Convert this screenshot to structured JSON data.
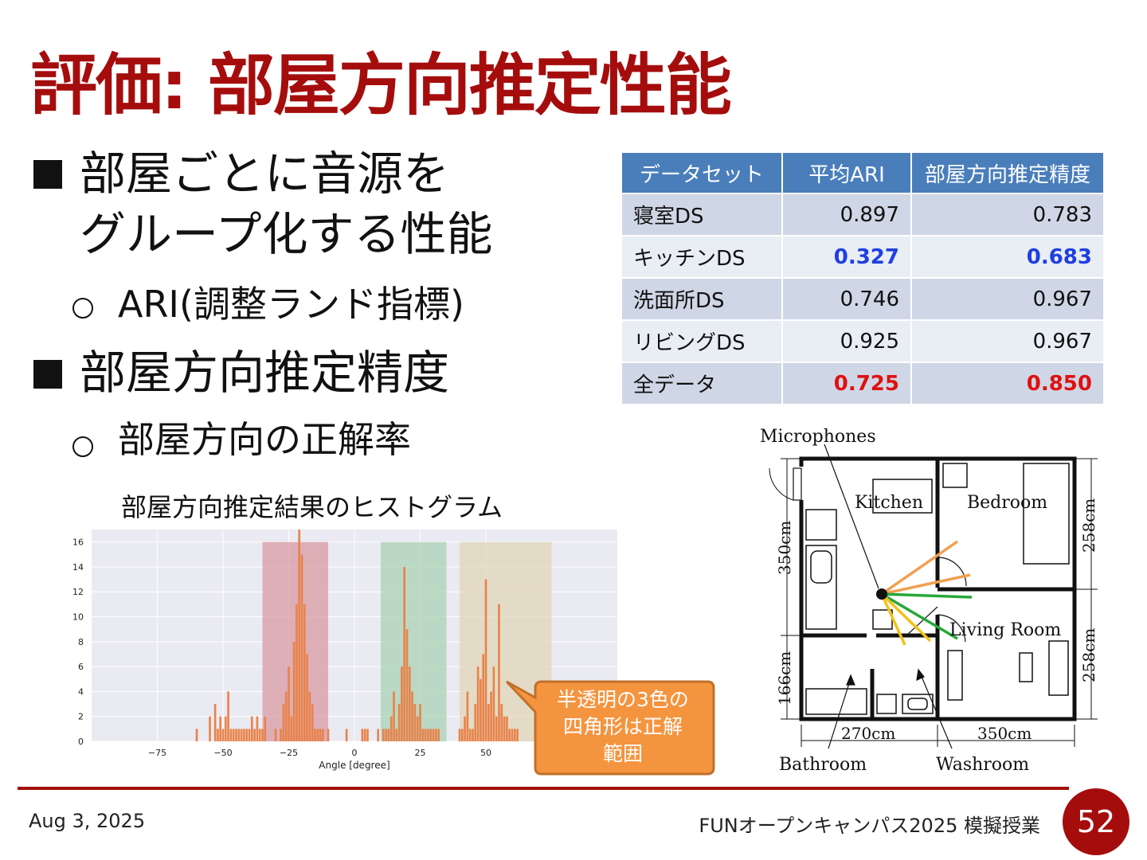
{
  "title": "評価: 部屋方向推定性能",
  "bullets": [
    {
      "line1": "部屋ごとに音源を",
      "line2": "グループ化する性能"
    },
    {
      "sub": "ARI(調整ランド指標)"
    },
    {
      "line1": "部屋方向推定精度"
    },
    {
      "sub": "部屋方向の正解率"
    }
  ],
  "table": {
    "headers": [
      "データセット",
      "平均ARI",
      "部屋方向推定精度"
    ],
    "rows": [
      {
        "name": "寝室DS",
        "ari": "0.897",
        "acc": "0.783",
        "highlight": "none"
      },
      {
        "name": "キッチンDS",
        "ari": "0.327",
        "acc": "0.683",
        "highlight": "blue"
      },
      {
        "name": "洗面所DS",
        "ari": "0.746",
        "acc": "0.967",
        "highlight": "none"
      },
      {
        "name": "リビングDS",
        "ari": "0.925",
        "acc": "0.967",
        "highlight": "none"
      },
      {
        "name": "全データ",
        "ari": "0.725",
        "acc": "0.850",
        "highlight": "red"
      }
    ],
    "colors": {
      "header": "#4a7ebb",
      "blue": "#1f3fe0",
      "red": "#e01010"
    }
  },
  "histogram_title": "部屋方向推定結果のヒストグラム",
  "chart_data": {
    "type": "bar",
    "xlabel": "Angle [degree]",
    "ylabel": "",
    "xlim": [
      -100,
      100
    ],
    "ylim": [
      0,
      17
    ],
    "xticks": [
      "−75",
      "−50",
      "−25",
      "0",
      "25",
      "50"
    ],
    "yticks": [
      "0",
      "2",
      "4",
      "6",
      "8",
      "10",
      "12",
      "14",
      "16"
    ],
    "grid": true,
    "bar_color": "#e8834a",
    "x": [
      -60,
      -55,
      -53,
      -52,
      -51,
      -50,
      -49,
      -48,
      -47,
      -46,
      -45,
      -44,
      -43,
      -42,
      -41,
      -40,
      -39,
      -38,
      -37,
      -36,
      -35,
      -34,
      -30,
      -28,
      -27,
      -26,
      -25,
      -24,
      -23,
      -22,
      -21,
      -20,
      -19,
      -18,
      -17,
      -16,
      -15,
      -14,
      -13,
      -12,
      -10,
      -3,
      3,
      4,
      5,
      9,
      11,
      12,
      13,
      14,
      15,
      16,
      17,
      18,
      19,
      20,
      21,
      22,
      23,
      24,
      25,
      26,
      27,
      28,
      29,
      30,
      31,
      32,
      40,
      41,
      42,
      43,
      44,
      45,
      46,
      47,
      48,
      49,
      50,
      51,
      52,
      53,
      54,
      55,
      56,
      57,
      58,
      59,
      60,
      61,
      62
    ],
    "y": [
      1,
      2,
      3,
      1,
      2,
      1,
      2,
      4,
      1,
      1,
      1,
      1,
      1,
      1,
      1,
      1,
      2,
      1,
      2,
      1,
      1,
      2,
      1,
      1,
      3,
      4,
      6,
      2,
      8,
      11,
      17,
      15,
      11,
      7,
      4,
      3,
      1,
      1,
      1,
      1,
      1,
      1,
      1,
      1,
      1,
      1,
      1,
      1,
      1,
      2,
      4,
      1,
      3,
      6,
      14,
      9,
      6,
      4,
      3,
      2,
      3,
      1,
      1,
      1,
      1,
      1,
      1,
      1,
      1,
      1,
      2,
      4,
      1,
      1,
      3,
      6,
      5,
      7,
      13,
      3,
      4,
      6,
      2,
      11,
      3,
      2,
      2,
      1,
      1,
      1,
      1
    ],
    "regions": [
      {
        "from": -35,
        "to": -10,
        "color": "#d99aa3"
      },
      {
        "from": 10,
        "to": 35,
        "color": "#a9d1b3"
      },
      {
        "from": 40,
        "to": 75,
        "color": "#e2d6b8"
      }
    ]
  },
  "callout": {
    "text1": "半透明の3色の",
    "text2": "四角形は正解",
    "text3": "範囲",
    "color": "#f5943f"
  },
  "floorplan": {
    "microphones": "Microphones",
    "rooms": {
      "kitchen": "Kitchen",
      "bedroom": "Bedroom",
      "living": "Living Room",
      "bathroom": "Bathroom",
      "washroom": "Washroom"
    },
    "dims": {
      "left_top": "350cm",
      "left_bottom": "166cm",
      "right_top": "258cm",
      "right_bottom": "258cm",
      "bottom_left": "270cm",
      "bottom_right": "350cm"
    }
  },
  "footer": {
    "date": "Aug 3, 2025",
    "event": "FUNオープンキャンパス2025 模擬授業",
    "page": "52"
  }
}
